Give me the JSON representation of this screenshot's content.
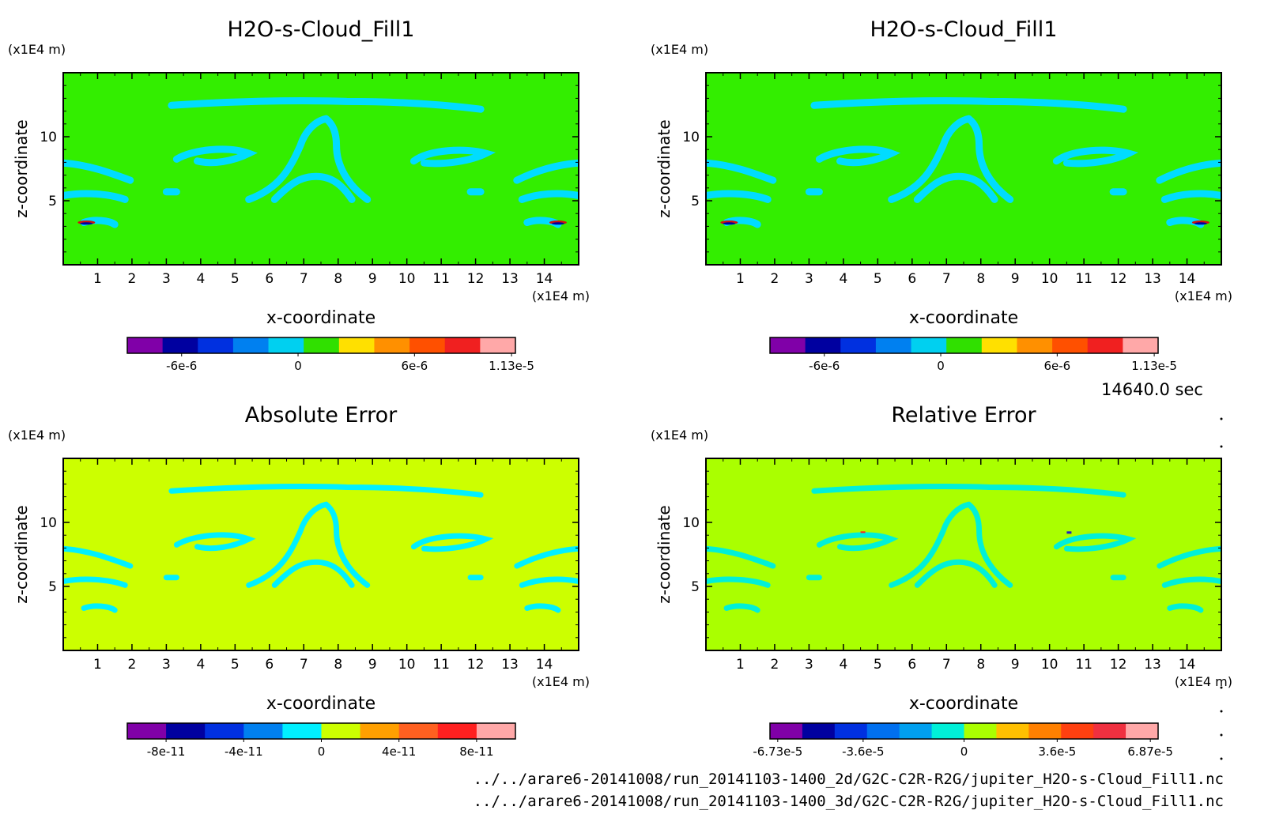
{
  "time_label": "14640.0 sec",
  "files": [
    "../../arare6-20141008/run_20141103-1400_2d/G2C-C2R-R2G/jupiter_H2O-s-Cloud_Fill1.nc",
    "../../arare6-20141008/run_20141103-1400_3d/G2C-C2R-R2G/jupiter_H2O-s-Cloud_Fill1.nc"
  ],
  "colors": {
    "background_2d": "#33ee00",
    "cloud_2d": "#00dcff",
    "background_abs": "#ccff00",
    "cloud_abs": "#00f0ff",
    "background_rel": "#aaff00",
    "cloud_rel": "#00f0d8"
  },
  "chart_data": [
    {
      "type": "heatmap",
      "title": "H2O-s-Cloud_Fill1",
      "xlabel": "x-coordinate",
      "ylabel": "z-coordinate",
      "x_unit": "(x1E4 m)",
      "y_unit": "(x1E4 m)",
      "xlim": [
        0,
        15
      ],
      "ylim": [
        0,
        15
      ],
      "x_ticks": [
        "1",
        "2",
        "3",
        "4",
        "5",
        "6",
        "7",
        "8",
        "9",
        "10",
        "11",
        "12",
        "13",
        "14"
      ],
      "y_ticks": [
        "5",
        "10"
      ],
      "colorbar": {
        "colors": [
          "#8000a8",
          "#0000a0",
          "#0030e0",
          "#0080f0",
          "#00d0f0",
          "#30e000",
          "#ffe000",
          "#ff9000",
          "#ff5000",
          "#f02020",
          "#ffa8a8"
        ],
        "tick_labels": [
          "-6e-6",
          "0",
          "6e-6",
          "1.13e-5"
        ]
      }
    },
    {
      "type": "heatmap",
      "title": "H2O-s-Cloud_Fill1",
      "xlabel": "x-coordinate",
      "ylabel": "z-coordinate",
      "x_unit": "(x1E4 m)",
      "y_unit": "(x1E4 m)",
      "xlim": [
        0,
        15
      ],
      "ylim": [
        0,
        15
      ],
      "x_ticks": [
        "1",
        "2",
        "3",
        "4",
        "5",
        "6",
        "7",
        "8",
        "9",
        "10",
        "11",
        "12",
        "13",
        "14"
      ],
      "y_ticks": [
        "5",
        "10"
      ],
      "colorbar": {
        "colors": [
          "#8000a8",
          "#0000a0",
          "#0030e0",
          "#0080f0",
          "#00d0f0",
          "#30e000",
          "#ffe000",
          "#ff9000",
          "#ff5000",
          "#f02020",
          "#ffa8a8"
        ],
        "tick_labels": [
          "-6e-6",
          "0",
          "6e-6",
          "1.13e-5"
        ]
      }
    },
    {
      "type": "heatmap",
      "title": "Absolute Error",
      "xlabel": "x-coordinate",
      "ylabel": "z-coordinate",
      "x_unit": "(x1E4 m)",
      "y_unit": "(x1E4 m)",
      "xlim": [
        0,
        15
      ],
      "ylim": [
        0,
        15
      ],
      "x_ticks": [
        "1",
        "2",
        "3",
        "4",
        "5",
        "6",
        "7",
        "8",
        "9",
        "10",
        "11",
        "12",
        "13",
        "14"
      ],
      "y_ticks": [
        "5",
        "10"
      ],
      "colorbar": {
        "colors": [
          "#8000a8",
          "#0000a0",
          "#0030e0",
          "#0080f0",
          "#00f0ff",
          "#ccff00",
          "#ffa000",
          "#ff6020",
          "#ff2020",
          "#ffa8a8"
        ],
        "tick_labels": [
          "-8e-11",
          "-4e-11",
          "0",
          "4e-11",
          "8e-11"
        ]
      }
    },
    {
      "type": "heatmap",
      "title": "Relative Error",
      "xlabel": "x-coordinate",
      "ylabel": "z-coordinate",
      "x_unit": "(x1E4 m)",
      "y_unit": "(x1E4 m)",
      "xlim": [
        0,
        15
      ],
      "ylim": [
        0,
        15
      ],
      "x_ticks": [
        "1",
        "2",
        "3",
        "4",
        "5",
        "6",
        "7",
        "8",
        "9",
        "10",
        "11",
        "12",
        "13",
        "14"
      ],
      "y_ticks": [
        "5",
        "10"
      ],
      "colorbar": {
        "colors": [
          "#8000a8",
          "#0000a0",
          "#0030e0",
          "#0070f0",
          "#00a0f0",
          "#00f0d8",
          "#aaff00",
          "#ffc000",
          "#ff8000",
          "#ff4010",
          "#f03040",
          "#ffa8a8"
        ],
        "tick_labels": [
          "-6.73e-5",
          "-3.6e-5",
          "0",
          "3.6e-5",
          "6.87e-5"
        ]
      }
    }
  ]
}
